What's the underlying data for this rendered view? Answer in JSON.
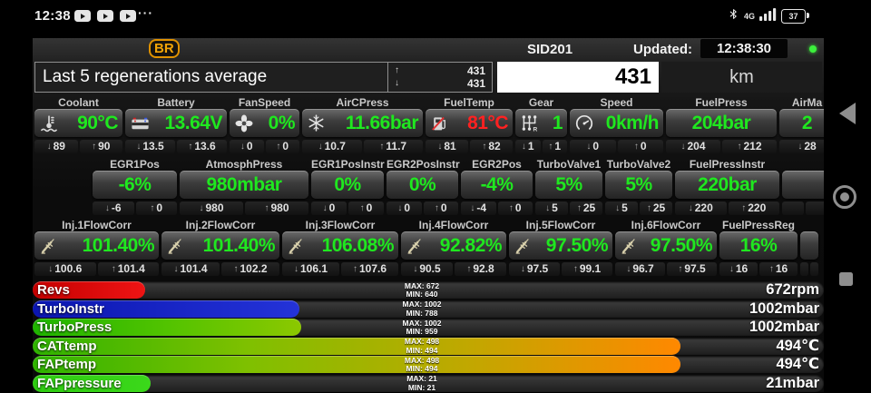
{
  "status_bar": {
    "time": "12:38",
    "notification_icons": [
      "play-icon",
      "play-icon",
      "play-icon"
    ],
    "overflow_glyph": "···",
    "bluetooth_icon": "bluetooth-icon",
    "network_label": "4G",
    "signal_icon": "signal-bars-icon",
    "battery_percent": "37"
  },
  "header": {
    "logo_text": "BR",
    "device_id": "SID201",
    "updated_label": "Updated:",
    "updated_time": "12:38:30",
    "status_dot_color": "#3cf03c"
  },
  "regen": {
    "title": "Last 5 regenerations average",
    "max_value": "431",
    "min_value": "431",
    "field_value": "431",
    "unit": "km"
  },
  "value_colors": {
    "normal": "#1fe81f",
    "alert": "#ff2121"
  },
  "gauges": {
    "rows": [
      {
        "offset": 0,
        "cells": [
          {
            "label": "Coolant",
            "icon": "coolant-icon",
            "value": "90°C",
            "min": "89",
            "max": "90",
            "w": 97
          },
          {
            "label": "Battery",
            "icon": "car-battery-icon",
            "value": "13.64V",
            "min": "13.5",
            "max": "13.6",
            "w": 112
          },
          {
            "label": "FanSpeed",
            "icon": "fan-icon",
            "value": "0%",
            "min": "0",
            "max": "0",
            "w": 77
          },
          {
            "label": "AirCPress",
            "icon": "snowflake-icon",
            "value": "11.66bar",
            "min": "10.7",
            "max": "11.7",
            "w": 133
          },
          {
            "label": "FuelTemp",
            "icon": "fuel-pump-icon",
            "value": "81°C",
            "value_color": "#ff2121",
            "min": "81",
            "max": "82",
            "w": 96
          },
          {
            "label": "Gear",
            "icon": "gear-shifter-icon",
            "value": "1",
            "min": "1",
            "max": "1",
            "w": 57
          },
          {
            "label": "Speed",
            "icon": "speedometer-icon",
            "value": "0km/h",
            "min": "0",
            "max": "0",
            "w": 103
          },
          {
            "label": "FuelPress",
            "icon": null,
            "value": "204bar",
            "min": "204",
            "max": "212",
            "w": 122
          },
          {
            "label": "AirMa",
            "icon": null,
            "value": "2",
            "min": "28",
            "max": null,
            "w": 61,
            "clipped": true
          }
        ]
      },
      {
        "offset": 64,
        "cells": [
          {
            "label": "EGR1Pos",
            "icon": null,
            "value": "-6%",
            "min": "-6",
            "max": "0",
            "w": 93
          },
          {
            "label": "AtmosphPress",
            "icon": null,
            "value": "980mbar",
            "min": "980",
            "max": "980",
            "w": 142
          },
          {
            "label": "EGR1PosInstr",
            "icon": null,
            "value": "0%",
            "min": "0",
            "max": "0",
            "w": 80
          },
          {
            "label": "EGR2PosInstr",
            "icon": null,
            "value": "0%",
            "min": "0",
            "max": "0",
            "w": 79
          },
          {
            "label": "EGR2Pos",
            "icon": null,
            "value": "-4%",
            "min": "-4",
            "max": "0",
            "w": 79
          },
          {
            "label": "TurboValve1",
            "icon": null,
            "value": "5%",
            "min": "5",
            "max": "25",
            "w": 74
          },
          {
            "label": "TurboValve2",
            "icon": null,
            "value": "5%",
            "min": "5",
            "max": "25",
            "w": 74
          },
          {
            "label": "FuelPressInstr",
            "icon": null,
            "value": "220bar",
            "min": "220",
            "max": "220",
            "w": 115
          },
          {
            "label": "",
            "icon": null,
            "value": "",
            "min": "",
            "max": "",
            "w": 50,
            "clipped": true
          }
        ]
      },
      {
        "offset": 0,
        "cells": [
          {
            "label": "Inj.1FlowCorr",
            "icon": "injector-icon",
            "value": "101.40%",
            "min": "100.6",
            "max": "101.4",
            "w": 137
          },
          {
            "label": "Inj.2FlowCorr",
            "icon": "injector-icon",
            "value": "101.40%",
            "min": "101.4",
            "max": "102.2",
            "w": 130
          },
          {
            "label": "Inj.3FlowCorr",
            "icon": "injector-icon",
            "value": "106.08%",
            "min": "106.1",
            "max": "107.6",
            "w": 128
          },
          {
            "label": "Inj.4FlowCorr",
            "icon": "injector-icon",
            "value": "92.82%",
            "min": "90.5",
            "max": "92.8",
            "w": 116
          },
          {
            "label": "Inj.5FlowCorr",
            "icon": "injector-icon",
            "value": "97.50%",
            "min": "97.5",
            "max": "99.1",
            "w": 114
          },
          {
            "label": "Inj.6FlowCorr",
            "icon": "injector-icon",
            "value": "97.50%",
            "min": "96.7",
            "max": "97.5",
            "w": 112
          },
          {
            "label": "FuelPressReg",
            "icon": null,
            "value": "16%",
            "min": "16",
            "max": "16",
            "w": 86
          },
          {
            "label": "",
            "icon": null,
            "value": "",
            "min": "",
            "max": "",
            "w": 20,
            "clipped": true
          }
        ]
      }
    ]
  },
  "bars": [
    {
      "label": "Revs",
      "value_text": "672rpm",
      "max_label": "MAX: 672",
      "min_label": "MIN: 640",
      "fill_pct": 14.2,
      "fill_colors": [
        "#c40000",
        "#ee1414"
      ]
    },
    {
      "label": "TurboInstr",
      "value_text": "1002mbar",
      "max_label": "MAX: 1002",
      "min_label": "MIN: 788",
      "fill_pct": 33.7,
      "fill_colors": [
        "#0b16b0",
        "#2433d8"
      ]
    },
    {
      "label": "TurboPress",
      "value_text": "1002mbar",
      "max_label": "MAX: 1002",
      "min_label": "MIN: 959",
      "fill_pct": 34.0,
      "fill_colors": [
        "#1eb400",
        "#52c300",
        "#8cc800"
      ]
    },
    {
      "label": "CATtemp",
      "value_text": "494℃",
      "max_label": "MAX: 498",
      "min_label": "MIN: 494",
      "fill_pct": 81.9,
      "fill_colors": [
        "#2fb400",
        "#7fc000",
        "#c0a800",
        "#ff8800"
      ]
    },
    {
      "label": "FAPtemp",
      "value_text": "494℃",
      "max_label": "MAX: 498",
      "min_label": "MIN: 494",
      "fill_pct": 81.9,
      "fill_colors": [
        "#2fb400",
        "#7fc000",
        "#c0a800",
        "#ff8800"
      ]
    },
    {
      "label": "FAPpressure",
      "value_text": "21mbar",
      "max_label": "MAX: 21",
      "min_label": "MIN: 21",
      "fill_pct": 14.9,
      "fill_colors": [
        "#2ecc11",
        "#3bd81a"
      ]
    }
  ],
  "chart_data": {
    "type": "bar",
    "orientation": "horizontal",
    "categories": [
      "Revs",
      "TurboInstr",
      "TurboPress",
      "CATtemp",
      "FAPtemp",
      "FAPpressure"
    ],
    "series": [
      {
        "name": "current",
        "values": [
          672,
          1002,
          1002,
          494,
          494,
          21
        ]
      },
      {
        "name": "min",
        "values": [
          640,
          788,
          959,
          494,
          494,
          21
        ]
      },
      {
        "name": "max",
        "values": [
          672,
          1002,
          1002,
          498,
          498,
          21
        ]
      }
    ],
    "units": [
      "rpm",
      "mbar",
      "mbar",
      "°C",
      "°C",
      "mbar"
    ],
    "legend": "off",
    "grid": "off"
  },
  "nav": {
    "back_icon": "back-icon",
    "home_icon": "home-icon",
    "recents_icon": "recents-icon"
  }
}
